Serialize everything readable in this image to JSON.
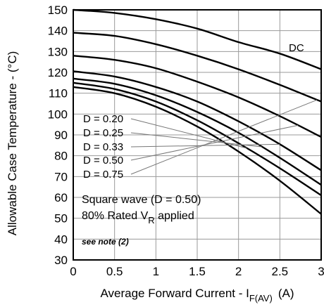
{
  "chart_data": {
    "type": "line",
    "xlabel": "Average Forward Current - I",
    "xlabel_sub": "F(AV)",
    "xlabel_unit": "(A)",
    "ylabel": "Allowable Case Temperature - (°C)",
    "xlim": [
      0,
      3
    ],
    "ylim": [
      30,
      150
    ],
    "x_ticks": [
      0,
      0.5,
      1,
      1.5,
      2,
      2.5,
      3
    ],
    "x_tick_labels": [
      "0",
      "0.5",
      "1",
      "1.5",
      "2",
      "2.5",
      "3"
    ],
    "y_ticks": [
      30,
      40,
      50,
      60,
      70,
      80,
      90,
      100,
      110,
      120,
      130,
      140,
      150
    ],
    "y_tick_labels": [
      "30",
      "40",
      "50",
      "60",
      "70",
      "80",
      "90",
      "100",
      "110",
      "120",
      "130",
      "140",
      "150"
    ],
    "grid": true,
    "series": [
      {
        "name": "DC",
        "x": [
          0,
          0.5,
          1,
          1.5,
          2,
          2.5,
          3
        ],
        "y": [
          150,
          148.5,
          145.5,
          141,
          134.5,
          129,
          121.5
        ]
      },
      {
        "name": "D = 0.75",
        "x": [
          0,
          0.5,
          1,
          1.5,
          2,
          2.5,
          3
        ],
        "y": [
          139,
          137.5,
          133.5,
          128,
          121.5,
          114,
          106
        ]
      },
      {
        "name": "D = 0.50",
        "x": [
          0,
          0.5,
          1,
          1.5,
          2,
          2.5,
          3
        ],
        "y": [
          128,
          126,
          122,
          115.5,
          108,
          99,
          89
        ]
      },
      {
        "name": "D = 0.33",
        "x": [
          0,
          0.5,
          1,
          1.5,
          2,
          2.5,
          3
        ],
        "y": [
          120.5,
          118,
          113,
          106,
          96.5,
          85.5,
          73
        ]
      },
      {
        "name": "D = 0.25",
        "x": [
          0,
          0.5,
          1,
          1.5,
          2,
          2.5,
          3
        ],
        "y": [
          117,
          114.5,
          109,
          101,
          91,
          79,
          66
        ]
      },
      {
        "name": "D = 0.20",
        "x": [
          0,
          0.5,
          1,
          1.5,
          2,
          2.5,
          3
        ],
        "y": [
          115,
          112,
          106,
          97,
          86,
          74,
          61
        ]
      },
      {
        "name": "",
        "x": [
          0,
          0.5,
          1,
          1.5,
          2,
          2.5,
          3
        ],
        "y": [
          113,
          110,
          103.5,
          94,
          82,
          68,
          52
        ]
      }
    ],
    "annotations": {
      "dc_label": "DC",
      "duty_labels": [
        "D = 0.20",
        "D = 0.25",
        "D = 0.33",
        "D = 0.50",
        "D = 0.75"
      ],
      "square_wave": "Square wave (D = 0.50)",
      "rated_prefix": "80% Rated V",
      "rated_sub": "R",
      "rated_suffix": " applied",
      "note": "see note (2)"
    }
  }
}
